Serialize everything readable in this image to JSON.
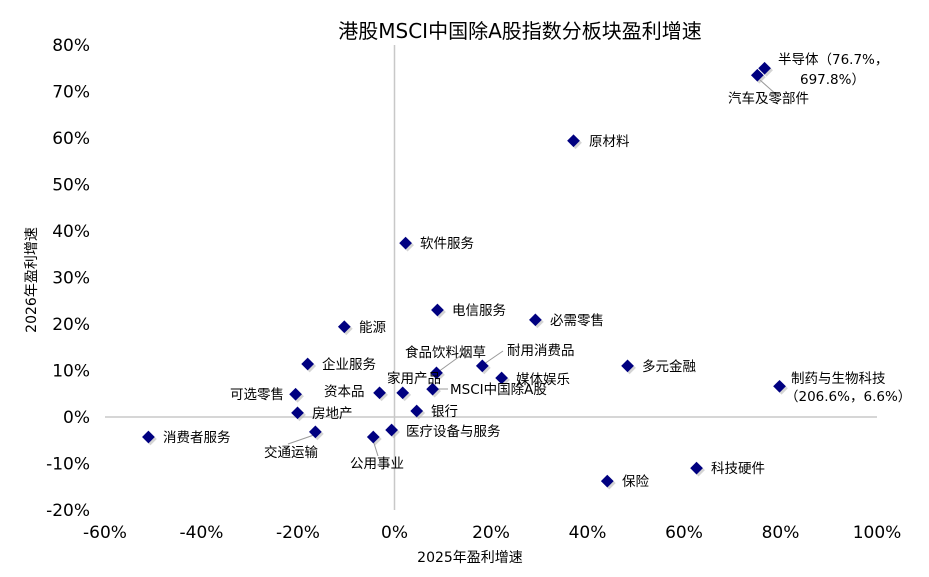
{
  "chart_data": {
    "type": "scatter",
    "title": "港股MSCI中国除A股指数分板块盈利增速",
    "xlabel": "2025年盈利增速",
    "ylabel": "2026年盈利增速",
    "xlim": [
      -60,
      100
    ],
    "ylim": [
      -20,
      80
    ],
    "x_ticks": [
      "-60%",
      "-40%",
      "-20%",
      "0%",
      "20%",
      "40%",
      "60%",
      "80%",
      "100%"
    ],
    "y_ticks": [
      "80%",
      "70%",
      "60%",
      "50%",
      "40%",
      "30%",
      "20%",
      "10%",
      "0%",
      "-10%",
      "-20%"
    ],
    "grid": false,
    "marker_color": "#000080",
    "points": [
      {
        "label": "半导体（76.7%，",
        "label2": "697.8%）",
        "x": 76.7,
        "y": 75
      },
      {
        "label": "汽车及零部件",
        "x": 75.2,
        "y": 73.5
      },
      {
        "label": "原材料",
        "x": 37.1,
        "y": 59.4
      },
      {
        "label": "软件服务",
        "x": 2.3,
        "y": 37.4
      },
      {
        "label": "电信服务",
        "x": 8.9,
        "y": 23.0
      },
      {
        "label": "必需零售",
        "x": 29.2,
        "y": 20.9
      },
      {
        "label": "能源",
        "x": -10.4,
        "y": 19.4
      },
      {
        "label": "企业服务",
        "x": -18.0,
        "y": 11.4
      },
      {
        "label": "食品饮料烟草",
        "x": 8.7,
        "y": 9.5
      },
      {
        "label": "耐用消费品",
        "x": 18.2,
        "y": 11.0
      },
      {
        "label": "多元金融",
        "x": 48.3,
        "y": 11.0
      },
      {
        "label": "制药与生物科技",
        "label2": "（206.6%，6.6%）",
        "x": 79.8,
        "y": 6.6
      },
      {
        "label": "媒体娱乐",
        "x": 22.2,
        "y": 8.4
      },
      {
        "label": "MSCI中国除A股",
        "x": 7.9,
        "y": 6.0
      },
      {
        "label": "家用产品",
        "x": 1.7,
        "y": 5.2
      },
      {
        "label": "资本品",
        "x": -3.1,
        "y": 5.2
      },
      {
        "label": "可选零售",
        "x": -20.5,
        "y": 4.9
      },
      {
        "label": "房地产",
        "x": -20.1,
        "y": 0.9
      },
      {
        "label": "银行",
        "x": 4.6,
        "y": 1.3
      },
      {
        "label": "消费者服务",
        "x": -51.0,
        "y": -4.3
      },
      {
        "label": "交通运输",
        "x": -16.4,
        "y": -3.2
      },
      {
        "label": "医疗设备与服务",
        "x": -0.6,
        "y": -2.8
      },
      {
        "label": "公用事业",
        "x": -4.4,
        "y": -4.3
      },
      {
        "label": "保险",
        "x": 44.1,
        "y": -13.8
      },
      {
        "label": "科技硬件",
        "x": 62.6,
        "y": -11.0
      }
    ]
  }
}
